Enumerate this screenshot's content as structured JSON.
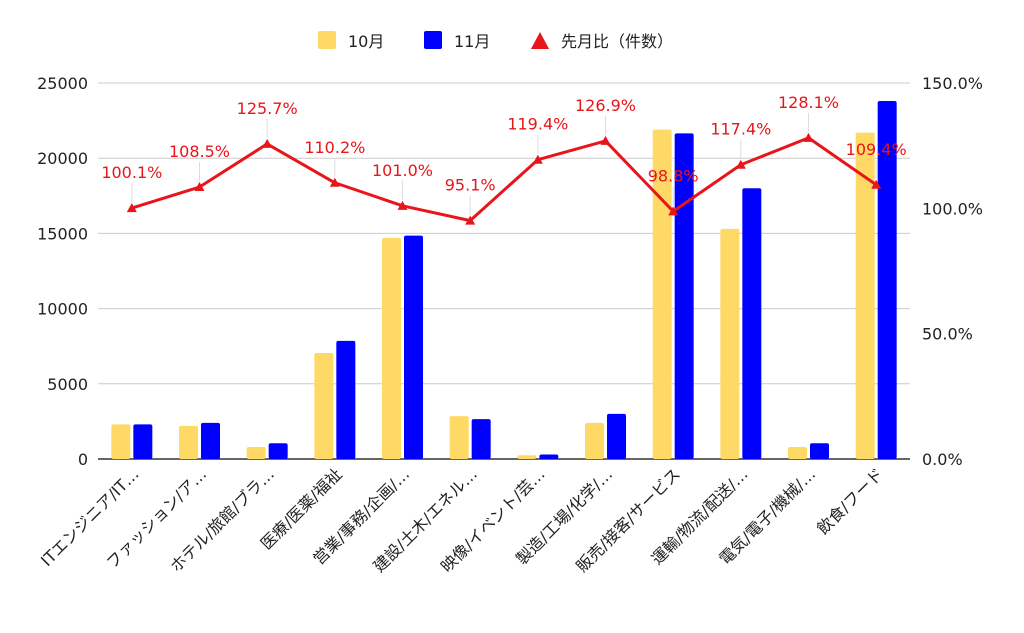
{
  "chart_data": {
    "type": "bar",
    "categories": [
      "ITエンジニア/IT…",
      "ファッション/ア…",
      "ホテル/旅館/ブラ…",
      "医療/医薬/福祉",
      "営業/事務/企画/…",
      "建設/土木/エネル…",
      "映像/イベント/芸…",
      "製造/工場/化学/…",
      "販売/接客/サービス",
      "運輸/物流/配送/…",
      "電気/電子/機械/…",
      "飲食/フード"
    ],
    "series": [
      {
        "name": "10月",
        "type": "bar",
        "axis": "left",
        "color": "#ffd966",
        "values": [
          2300,
          2200,
          800,
          7050,
          14700,
          2850,
          250,
          2400,
          21900,
          15300,
          800,
          21700
        ]
      },
      {
        "name": "11月",
        "type": "bar",
        "axis": "left",
        "color": "#0000ff",
        "values": [
          2300,
          2400,
          1050,
          7850,
          14850,
          2650,
          300,
          3000,
          21650,
          18000,
          1050,
          23800
        ]
      },
      {
        "name": "先月比（件数）",
        "type": "line",
        "axis": "right",
        "color": "#e8151b",
        "values": [
          100.1,
          108.5,
          125.7,
          110.2,
          101.0,
          95.1,
          119.4,
          126.9,
          98.8,
          117.4,
          128.1,
          109.4
        ],
        "labels": [
          "100.1%",
          "108.5%",
          "125.7%",
          "110.2%",
          "101.0%",
          "95.1%",
          "119.4%",
          "126.9%",
          "98.8%",
          "117.4%",
          "128.1%",
          "109.4%"
        ]
      }
    ],
    "y_left": {
      "ylim": [
        0,
        25000
      ],
      "ticks": [
        "0",
        "5000",
        "10000",
        "15000",
        "20000",
        "25000"
      ]
    },
    "y_right": {
      "ylim": [
        0,
        150
      ],
      "ticks": [
        "0.0%",
        "50.0%",
        "100.0%",
        "150.0%"
      ]
    },
    "legend": "top",
    "grid": true
  }
}
